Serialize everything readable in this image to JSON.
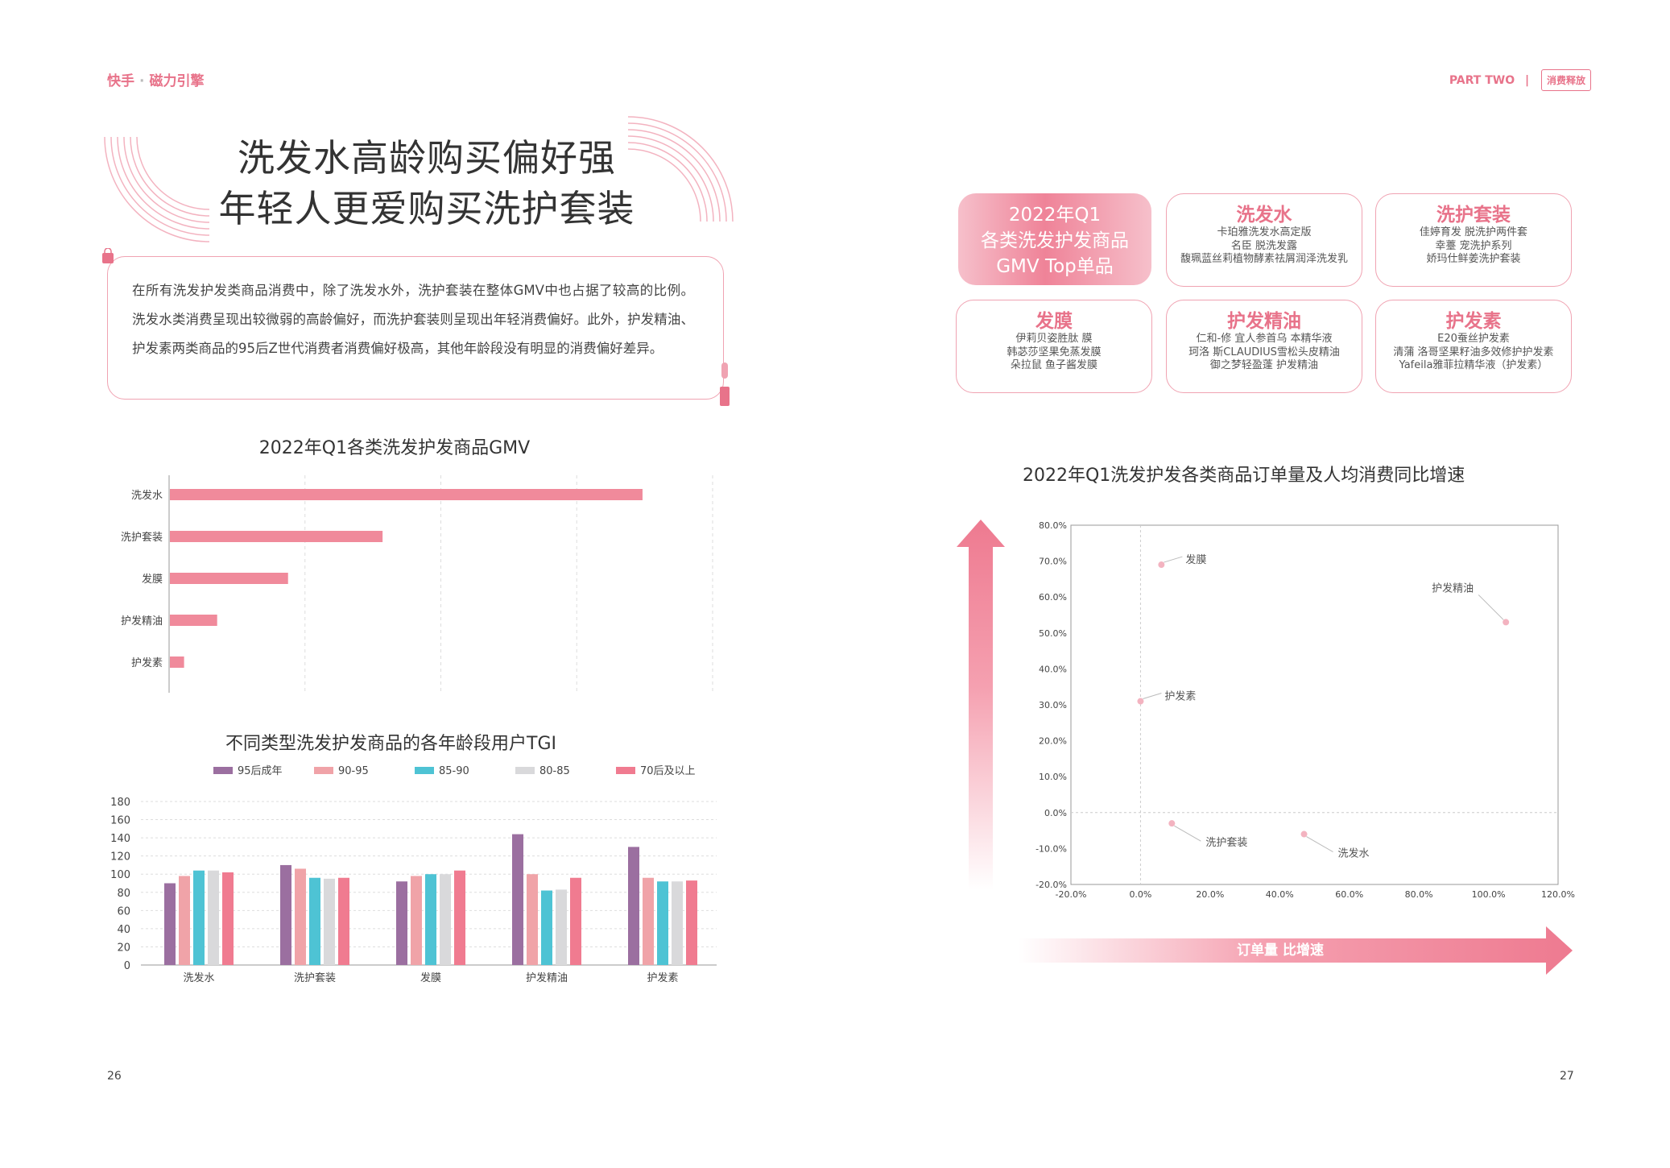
{
  "header": {
    "logo_a": "快手",
    "logo_b": "磁力引擎",
    "part_label": "PART TWO",
    "part_tag": "消费释放"
  },
  "left": {
    "title_line1": "洗发水高龄购买偏好强",
    "title_line2": "年轻人更爱购买洗护套装",
    "intro": "在所有洗发护发类商品消费中，除了洗发水外，洗护套装在整体GMV中也占据了较高的比例。洗发水类消费呈现出较微弱的高龄偏好，而洗护套装则呈现出年轻消费偏好。此外，护发精油、护发素两类商品的95后Z世代消费者消费偏好极高，其他年龄段没有明显的消费偏好差异。",
    "page_number": "26"
  },
  "right": {
    "page_number": "27",
    "summary_card": {
      "line1": "2022年Q1",
      "line2": "各类洗发护发商品",
      "line3": "GMV Top单品"
    },
    "cards": [
      {
        "title": "洗发水",
        "items": [
          "卡珀雅洗发水高定版",
          "名臣 脱洗发露",
          "馥珮蓝丝莉植物酵素祛屑润泽洗发乳"
        ]
      },
      {
        "title": "洗护套装",
        "items": [
          "佳婷育发 脱洗护两件套",
          "幸薹 宠洗护系列",
          "娇玛仕鲜姜洗护套装"
        ]
      },
      {
        "title": "发膜",
        "items": [
          "伊莉贝姿胜肽 膜",
          "韩苾莎坚果免蒸发膜",
          "朵拉鼠 鱼子酱发膜"
        ]
      },
      {
        "title": "护发精油",
        "items": [
          "仁和-修 宜人参首乌 本精华液",
          "珂洛 斯CLAUDIUS雪松头皮精油",
          "御之梦轻盈蓬 护发精油"
        ]
      },
      {
        "title": "护发素",
        "items": [
          "E20蚕丝护发素",
          "清蒲 洛哥坚果籽油多效修护护发素",
          "Yafeila雅菲拉精华液（护发素）"
        ]
      }
    ],
    "arrow_label": "订单量 比增速"
  },
  "colors": {
    "accent": "#e8738a",
    "bar_pink": "#f08a9b",
    "s1": "#9b6fa0",
    "s2": "#f0a3a8",
    "s3": "#4ec3d4",
    "s4": "#d9d9db",
    "s5": "#f07b90"
  },
  "chart_data": [
    {
      "type": "bar",
      "orientation": "horizontal",
      "title": "2022年Q1各类洗发护发商品GMV",
      "categories": [
        "洗发水",
        "洗护套装",
        "发膜",
        "护发精油",
        "护发素"
      ],
      "values": [
        100,
        45,
        25,
        10,
        3
      ],
      "xlim": [
        0,
        115
      ],
      "grid": true
    },
    {
      "type": "bar",
      "title": "不同类型洗发护发商品的各年龄段用户TGI",
      "categories": [
        "洗发水",
        "洗护套装",
        "发膜",
        "护发精油",
        "护发素"
      ],
      "ylim": [
        0,
        180
      ],
      "yticks": [
        0,
        20,
        40,
        60,
        80,
        100,
        120,
        140,
        160,
        180
      ],
      "legend": "top",
      "series": [
        {
          "name": "95后成年",
          "values": [
            90,
            110,
            92,
            144,
            130
          ]
        },
        {
          "name": "90-95",
          "values": [
            98,
            106,
            98,
            100,
            96
          ]
        },
        {
          "name": "85-90",
          "values": [
            104,
            96,
            100,
            82,
            92
          ]
        },
        {
          "name": "80-85",
          "values": [
            104,
            95,
            100,
            83,
            92
          ]
        },
        {
          "name": "70后及以上",
          "values": [
            102,
            96,
            104,
            96,
            93
          ]
        }
      ]
    },
    {
      "type": "scatter",
      "title": "2022年Q1洗发护发各类商品订单量及人均消费同比增速",
      "xlim": [
        -20,
        120
      ],
      "ylim": [
        -20,
        80
      ],
      "xticks": [
        "-20.0%",
        "0.0%",
        "20.0%",
        "40.0%",
        "60.0%",
        "80.0%",
        "100.0%",
        "120.0%"
      ],
      "yticks": [
        "80.0%",
        "70.0%",
        "60.0%",
        "50.0%",
        "40.0%",
        "30.0%",
        "20.0%",
        "10.0%",
        "0.0%",
        "-10.0%",
        "-20.0%"
      ],
      "points": [
        {
          "label": "发膜",
          "x": 6,
          "y": 69
        },
        {
          "label": "护发精油",
          "x": 105,
          "y": 53
        },
        {
          "label": "护发素",
          "x": 0,
          "y": 31
        },
        {
          "label": "洗护套装",
          "x": 9,
          "y": -3
        },
        {
          "label": "洗发水",
          "x": 47,
          "y": -6
        }
      ]
    }
  ]
}
